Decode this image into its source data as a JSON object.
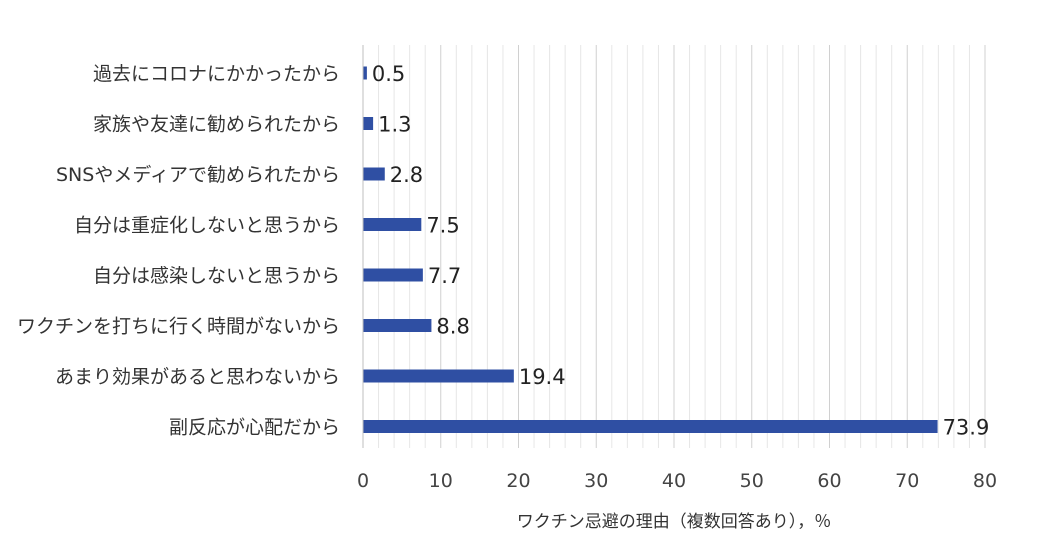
{
  "chart_data": {
    "type": "bar",
    "orientation": "horizontal",
    "categories": [
      "過去にコロナにかかったから",
      "家族や友達に勧められたから",
      "SNSやメディアで勧められたから",
      "自分は重症化しないと思うから",
      "自分は感染しないと思うから",
      "ワクチンを打ちに行く時間がないから",
      "あまり効果があると思わないから",
      "副反応が心配だから"
    ],
    "values": [
      0.5,
      1.3,
      2.8,
      7.5,
      7.7,
      8.8,
      19.4,
      73.9
    ],
    "value_labels": [
      "0.5",
      "1.3",
      "2.8",
      "7.5",
      "7.7",
      "8.8",
      "19.4",
      "73.9"
    ],
    "xlabel": "ワクチン忌避の理由（複数回答あり），％",
    "xlim": [
      0,
      80
    ],
    "x_ticks": [
      "0",
      "10",
      "20",
      "30",
      "40",
      "50",
      "60",
      "70",
      "80"
    ],
    "bar_color": "#2f4fa3",
    "grid": true,
    "legend": "none"
  }
}
